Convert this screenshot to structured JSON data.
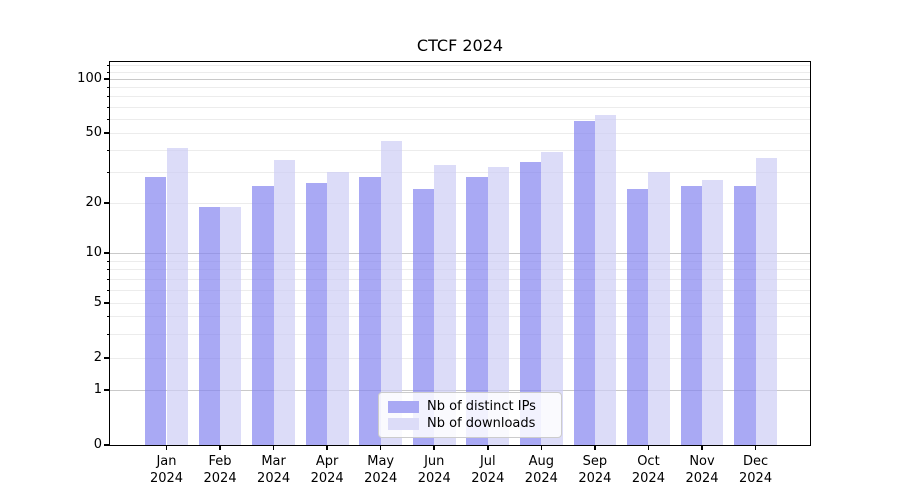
{
  "chart_data": {
    "type": "bar",
    "title": "CTCF 2024",
    "categories": [
      "Jan",
      "Feb",
      "Mar",
      "Apr",
      "May",
      "Jun",
      "Jul",
      "Aug",
      "Sep",
      "Oct",
      "Nov",
      "Dec"
    ],
    "category_year": "2024",
    "series": [
      {
        "name": "Nb of distinct IPs",
        "color": "#a9a9f4",
        "fill": "rgba(132,132,239,0.7)",
        "values": [
          28,
          19,
          25,
          26,
          28,
          24,
          28,
          34,
          58,
          24,
          25,
          25
        ]
      },
      {
        "name": "Nb of downloads",
        "color": "#dcdcf8",
        "fill": "rgba(205,205,245,0.7)",
        "values": [
          41,
          19,
          35,
          30,
          45,
          33,
          32,
          39,
          63,
          30,
          27,
          36
        ]
      }
    ],
    "yscale": "symlog",
    "y_ticks": [
      0,
      1,
      2,
      5,
      10,
      20,
      50,
      100
    ],
    "ylim": [
      0,
      125
    ],
    "xlabel": "",
    "ylabel": "",
    "grid": true,
    "legend_position": "lower center"
  },
  "colors": {
    "grid_major": "#c9c9c9",
    "grid_minor": "#ececec",
    "axis": "#000000",
    "background": "#ffffff",
    "legend_border": "#cccccc"
  }
}
